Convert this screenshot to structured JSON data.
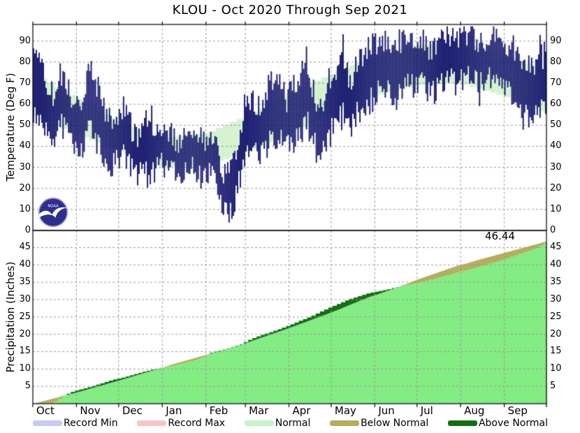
{
  "title": "KLOU - Oct 2020 Through Sep 2021",
  "temperature_panel": {
    "axis_label": "Temperature (Deg F)",
    "ticks": [
      0,
      10,
      20,
      30,
      40,
      50,
      60,
      70,
      80,
      90
    ]
  },
  "precipitation_panel": {
    "axis_label": "Precipitation (Inches)",
    "ticks": [
      5,
      10,
      15,
      20,
      25,
      30,
      35,
      40,
      45
    ],
    "final_total_label": "46.44"
  },
  "months": {
    "labels": [
      "Oct",
      "Nov",
      "Dec",
      "Jan",
      "Feb",
      "Mar",
      "Apr",
      "May",
      "Jun",
      "Jul",
      "Aug",
      "Sep"
    ],
    "days_per_month": [
      31,
      30,
      31,
      31,
      28,
      31,
      30,
      31,
      30,
      31,
      31,
      30
    ]
  },
  "legend": {
    "items": [
      {
        "label": "Record Min",
        "color": "#c9c9f2"
      },
      {
        "label": "Record Max",
        "color": "#f6c6c6"
      },
      {
        "label": "Normal",
        "color": "#c6f4c6"
      },
      {
        "label": "Below Normal",
        "color": "#b5ad5e"
      },
      {
        "label": "Above Normal",
        "color": "#146e14"
      }
    ]
  },
  "logo": {
    "name": "noaa-logo",
    "text": "NOAA"
  },
  "colors": {
    "temp_bar": "#191970",
    "temp_normal_band": "#d5f3d0",
    "precip_normal_area": "#83ec83",
    "precip_below_normal": "#b5ad5e",
    "precip_above_normal": "#146e14",
    "gridline": "#9a9a9a",
    "axis": "#000000",
    "background": "#ffffff"
  },
  "chart_data": [
    {
      "type": "bar",
      "title": "Daily observed temperature range (min-max bars) vs normal band",
      "ylabel": "Temperature (Deg F)",
      "ylim": [
        0,
        98
      ],
      "x_months": [
        "Oct",
        "Nov",
        "Dec",
        "Jan",
        "Feb",
        "Mar",
        "Apr",
        "May",
        "Jun",
        "Jul",
        "Aug",
        "Sep"
      ],
      "sample_days": [
        0,
        5,
        10,
        15,
        20,
        25,
        30,
        35,
        40,
        45,
        50,
        55,
        60,
        65,
        70,
        75,
        80,
        85,
        90,
        95,
        100,
        105,
        110,
        115,
        120,
        125,
        130,
        135,
        140,
        145,
        150,
        155,
        160,
        165,
        170,
        175,
        180,
        185,
        190,
        195,
        200,
        205,
        210,
        215,
        220,
        225,
        230,
        235,
        240,
        245,
        250,
        255,
        260,
        265,
        270,
        275,
        280,
        285,
        290,
        295,
        300,
        305,
        310,
        315,
        320,
        325,
        330,
        335,
        340,
        345,
        350,
        355,
        360,
        364
      ],
      "series": [
        {
          "name": "actual_low",
          "values": [
            55,
            52,
            45,
            42,
            50,
            44,
            38,
            40,
            48,
            42,
            35,
            30,
            33,
            35,
            28,
            25,
            30,
            27,
            32,
            30,
            28,
            25,
            30,
            28,
            25,
            28,
            20,
            10,
            8,
            20,
            35,
            38,
            35,
            40,
            42,
            45,
            40,
            42,
            48,
            50,
            40,
            35,
            45,
            50,
            55,
            48,
            55,
            60,
            62,
            65,
            68,
            64,
            66,
            70,
            68,
            70,
            68,
            66,
            70,
            72,
            70,
            72,
            74,
            70,
            68,
            72,
            70,
            68,
            65,
            60,
            55,
            52,
            58,
            60
          ]
        },
        {
          "name": "actual_high",
          "values": [
            82,
            78,
            70,
            62,
            75,
            68,
            58,
            65,
            76,
            70,
            58,
            52,
            55,
            60,
            48,
            45,
            52,
            47,
            50,
            46,
            44,
            40,
            48,
            45,
            42,
            45,
            38,
            25,
            28,
            40,
            58,
            62,
            58,
            66,
            70,
            72,
            62,
            68,
            75,
            78,
            62,
            60,
            72,
            78,
            82,
            70,
            80,
            85,
            88,
            88,
            92,
            85,
            90,
            93,
            90,
            92,
            88,
            86,
            92,
            94,
            90,
            93,
            95,
            90,
            88,
            93,
            92,
            90,
            88,
            82,
            78,
            76,
            82,
            84
          ]
        }
      ],
      "normals": {
        "days": [
          0,
          31,
          61,
          92,
          123,
          151,
          182,
          212,
          243,
          273,
          304,
          335,
          365
        ],
        "low": [
          55,
          46,
          38,
          30,
          31,
          37,
          46,
          55,
          64,
          69,
          70,
          64,
          56
        ],
        "high": [
          75,
          63,
          52,
          44,
          46,
          54,
          65,
          74,
          83,
          88,
          89,
          84,
          76
        ]
      }
    },
    {
      "type": "area",
      "title": "Cumulative precipitation: actual vs normal",
      "ylabel": "Precipitation (Inches)",
      "ylim": [
        0,
        50
      ],
      "days": [
        0,
        7,
        14,
        21,
        28,
        35,
        42,
        49,
        56,
        63,
        70,
        77,
        84,
        91,
        98,
        105,
        112,
        119,
        126,
        133,
        140,
        147,
        154,
        161,
        168,
        175,
        182,
        189,
        196,
        203,
        210,
        217,
        224,
        231,
        238,
        245,
        252,
        259,
        266,
        273,
        280,
        287,
        294,
        301,
        308,
        315,
        322,
        329,
        336,
        343,
        350,
        357,
        364
      ],
      "series": [
        {
          "name": "actual_cumulative",
          "values": [
            0.0,
            0.12,
            0.25,
            2.3,
            3.6,
            4.3,
            5.1,
            6.0,
            6.9,
            7.5,
            8.3,
            9.1,
            9.8,
            10.4,
            10.9,
            11.6,
            12.4,
            13.2,
            14.7,
            15.4,
            16.2,
            17.1,
            18.6,
            19.7,
            20.6,
            21.6,
            22.7,
            23.9,
            25.0,
            26.4,
            27.7,
            28.9,
            30.1,
            31.0,
            31.9,
            32.4,
            33.0,
            33.7,
            34.3,
            34.9,
            35.6,
            36.3,
            37.1,
            37.9,
            38.6,
            39.4,
            40.2,
            41.0,
            41.9,
            42.9,
            43.9,
            44.9,
            46.44
          ]
        },
        {
          "name": "normal_cumulative",
          "values": [
            0.0,
            0.74,
            1.47,
            2.21,
            2.94,
            3.72,
            4.52,
            5.33,
            6.13,
            6.95,
            7.79,
            8.63,
            9.47,
            10.31,
            11.24,
            12.04,
            12.85,
            13.65,
            14.46,
            15.2,
            16.04,
            16.88,
            17.9,
            18.9,
            19.88,
            20.86,
            21.85,
            22.9,
            23.95,
            25.0,
            26.05,
            27.16,
            28.35,
            29.5,
            30.66,
            31.59,
            32.6,
            33.62,
            34.63,
            35.79,
            36.78,
            37.76,
            38.74,
            39.72,
            40.44,
            41.32,
            42.09,
            42.86,
            43.62,
            44.39,
            45.16,
            45.93,
            46.7
          ]
        }
      ],
      "final_total": 46.44
    }
  ]
}
